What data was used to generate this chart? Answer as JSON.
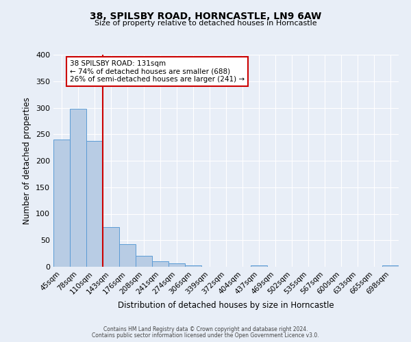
{
  "title": "38, SPILSBY ROAD, HORNCASTLE, LN9 6AW",
  "subtitle": "Size of property relative to detached houses in Horncastle",
  "xlabel": "Distribution of detached houses by size in Horncastle",
  "ylabel": "Number of detached properties",
  "bar_labels": [
    "45sqm",
    "78sqm",
    "110sqm",
    "143sqm",
    "176sqm",
    "208sqm",
    "241sqm",
    "274sqm",
    "306sqm",
    "339sqm",
    "372sqm",
    "404sqm",
    "437sqm",
    "469sqm",
    "502sqm",
    "535sqm",
    "567sqm",
    "600sqm",
    "633sqm",
    "665sqm",
    "698sqm"
  ],
  "bar_values": [
    240,
    298,
    238,
    75,
    43,
    21,
    10,
    6,
    3,
    0,
    0,
    0,
    2,
    0,
    0,
    0,
    0,
    0,
    0,
    0,
    2
  ],
  "bar_color": "#b8cce4",
  "bar_edge_color": "#5b9bd5",
  "ylim": [
    0,
    400
  ],
  "yticks": [
    0,
    50,
    100,
    150,
    200,
    250,
    300,
    350,
    400
  ],
  "vline_x": 2.5,
  "vline_color": "#cc0000",
  "annotation_title": "38 SPILSBY ROAD: 131sqm",
  "annotation_line1": "← 74% of detached houses are smaller (688)",
  "annotation_line2": "26% of semi-detached houses are larger (241) →",
  "annotation_box_color": "#ffffff",
  "annotation_box_edge": "#cc0000",
  "background_color": "#e8eef7",
  "plot_bg_color": "#e8eef7",
  "footer1": "Contains HM Land Registry data © Crown copyright and database right 2024.",
  "footer2": "Contains public sector information licensed under the Open Government Licence v3.0."
}
